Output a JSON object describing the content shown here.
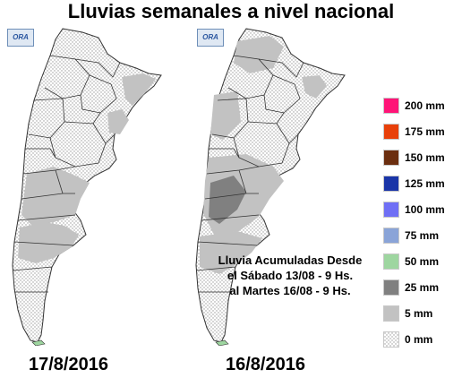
{
  "title": "Lluvias semanales a nivel nacional",
  "logo_text": "ORA",
  "maps": [
    {
      "date": "17/8/2016"
    },
    {
      "date": "16/8/2016"
    }
  ],
  "note": {
    "line1": "Lluvia Acumuladas Desde",
    "line2": "el Sábado 13/08 - 9 Hs.",
    "line3": "al Martes 16/08 - 9 Hs."
  },
  "legend": [
    {
      "label": "200 mm",
      "color": "#ff1477"
    },
    {
      "label": "175 mm",
      "color": "#e8400a"
    },
    {
      "label": "150 mm",
      "color": "#6b2e0f"
    },
    {
      "label": "125 mm",
      "color": "#1a35a8"
    },
    {
      "label": "100 mm",
      "color": "#6f6ff5"
    },
    {
      "label": "75 mm",
      "color": "#8aa4d8"
    },
    {
      "label": "50 mm",
      "color": "#9ed6a0"
    },
    {
      "label": "25 mm",
      "color": "#808080"
    },
    {
      "label": "5 mm",
      "color": "#c2c2c2"
    },
    {
      "label": "0 mm",
      "color": "#dcdcdc"
    }
  ],
  "colors": {
    "dotted_fill": "#dcdcdc",
    "light_rain": "#c2c2c2",
    "moderate_rain": "#808080",
    "islands": "#9ed6a0"
  }
}
